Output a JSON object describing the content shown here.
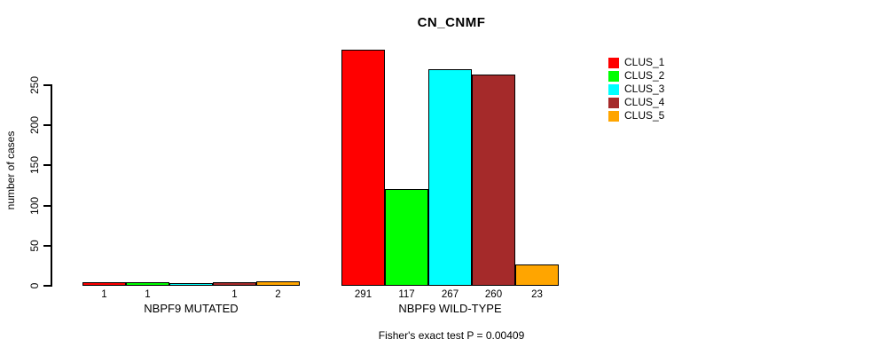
{
  "chart_data": {
    "type": "bar",
    "title": "CN_CNMF",
    "ylabel": "number of cases",
    "ylim": [
      0,
      291
    ],
    "yticks": [
      0,
      50,
      100,
      150,
      200,
      250
    ],
    "grid": false,
    "legend": {
      "position": "right",
      "entries": [
        {
          "label": "CLUS_1",
          "color": "#FF0000"
        },
        {
          "label": "CLUS_2",
          "color": "#00FF00"
        },
        {
          "label": "CLUS_3",
          "color": "#00FFFF"
        },
        {
          "label": "CLUS_4",
          "color": "#A52A2A"
        },
        {
          "label": "CLUS_5",
          "color": "#FFA500"
        }
      ]
    },
    "groups": [
      {
        "label": "NBPF9 MUTATED",
        "values": [
          1,
          1,
          0,
          1,
          2
        ],
        "bar_labels": [
          "1",
          "1",
          "",
          "1",
          "2"
        ]
      },
      {
        "label": "NBPF9 WILD-TYPE",
        "values": [
          291,
          117,
          267,
          260,
          23
        ],
        "bar_labels": [
          "291",
          "117",
          "267",
          "260",
          "23"
        ]
      }
    ],
    "footer": "Fisher's exact test P = 0.00409"
  }
}
